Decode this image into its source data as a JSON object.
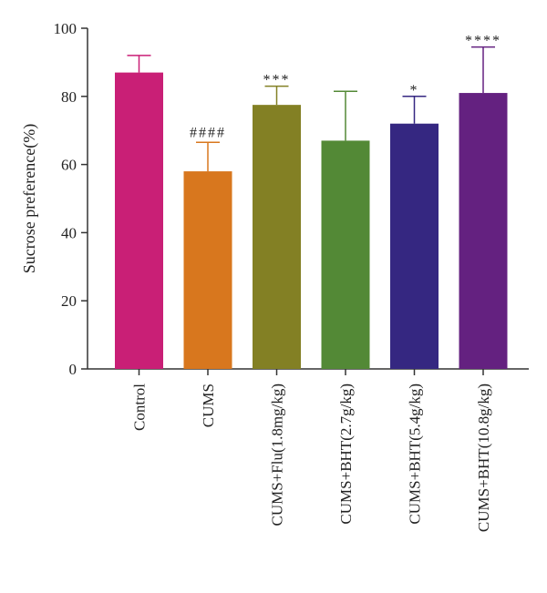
{
  "chart_data": {
    "type": "bar",
    "title": "",
    "xlabel": "",
    "ylabel": "Sucrose preference(%)",
    "ylim": [
      0,
      100
    ],
    "yticks": [
      0,
      20,
      40,
      60,
      80,
      100
    ],
    "grid": false,
    "legend": "none",
    "categories": [
      "Control",
      "CUMS",
      "CUMS+Flu(1.8mg/kg)",
      "CUMS+BHT(2.7g/kg)",
      "CUMS+BHT(5.4g/kg)",
      "CUMS+BHT(10.8g/kg)"
    ],
    "values": [
      87,
      58,
      77.5,
      67,
      72,
      81
    ],
    "errors": [
      5,
      8.5,
      5.5,
      14.5,
      8,
      13.5
    ],
    "significance": [
      "",
      "####",
      "***",
      "",
      "*",
      "****"
    ],
    "colors": [
      "#C91F76",
      "#D8771E",
      "#838024",
      "#538936",
      "#352781",
      "#642180"
    ]
  }
}
